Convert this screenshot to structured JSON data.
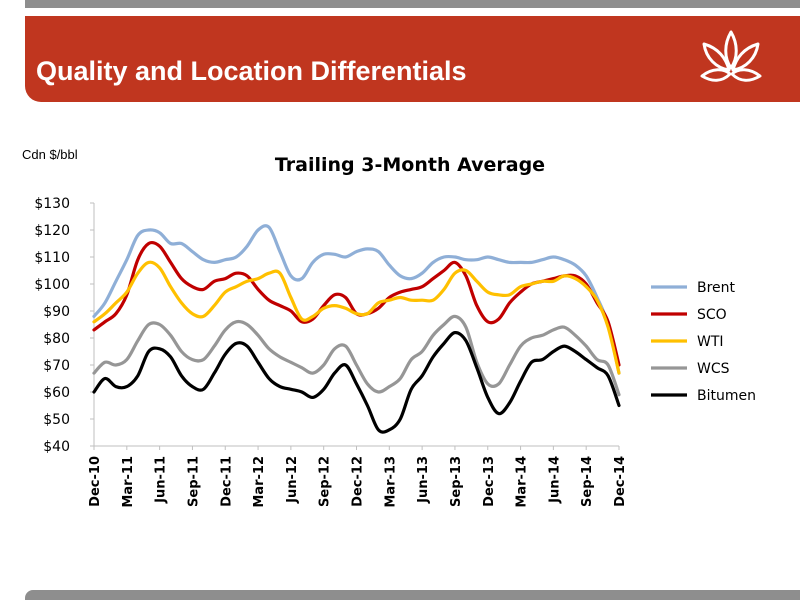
{
  "slide": {
    "title": "Quality and Location Differentials",
    "unit_label": "Cdn $/bbl"
  },
  "logo": {
    "icon": "lotus-flower-icon",
    "color": "#ffffff"
  },
  "colors": {
    "banner": "#c0361f",
    "bars": "#8e8e8e"
  },
  "chart_data": {
    "type": "line",
    "title": "Trailing 3-Month Average",
    "xlabel": "",
    "ylabel": "Cdn $/bbl",
    "ylim": [
      40,
      130
    ],
    "grid": false,
    "legend_position": "right",
    "yticks": [
      "$130",
      "$120",
      "$110",
      "$100",
      "$90",
      "$80",
      "$70",
      "$60",
      "$50",
      "$40"
    ],
    "ytick_values": [
      130,
      120,
      110,
      100,
      90,
      80,
      70,
      60,
      50,
      40
    ],
    "xticks": [
      "Dec-10",
      "Mar-11",
      "Jun-11",
      "Sep-11",
      "Dec-11",
      "Mar-12",
      "Jun-12",
      "Sep-12",
      "Dec-12",
      "Mar-13",
      "Jun-13",
      "Sep-13",
      "Dec-13",
      "Mar-14",
      "Jun-14",
      "Sep-14",
      "Dec-14"
    ],
    "xticks_bold": [
      false,
      true,
      false,
      false,
      false,
      true,
      false,
      false,
      false,
      true,
      false,
      false,
      false,
      true,
      false,
      false,
      true
    ],
    "x": [
      "Dec-10",
      "Jan-11",
      "Feb-11",
      "Mar-11",
      "Apr-11",
      "May-11",
      "Jun-11",
      "Jul-11",
      "Aug-11",
      "Sep-11",
      "Oct-11",
      "Nov-11",
      "Dec-11",
      "Jan-12",
      "Feb-12",
      "Mar-12",
      "Apr-12",
      "May-12",
      "Jun-12",
      "Jul-12",
      "Aug-12",
      "Sep-12",
      "Oct-12",
      "Nov-12",
      "Dec-12",
      "Jan-13",
      "Feb-13",
      "Mar-13",
      "Apr-13",
      "May-13",
      "Jun-13",
      "Jul-13",
      "Aug-13",
      "Sep-13",
      "Oct-13",
      "Nov-13",
      "Dec-13",
      "Jan-14",
      "Feb-14",
      "Mar-14",
      "Apr-14",
      "May-14",
      "Jun-14",
      "Jul-14",
      "Aug-14",
      "Sep-14",
      "Oct-14",
      "Nov-14",
      "Dec-14"
    ],
    "series": [
      {
        "name": "Brent",
        "color": "#8fafd7",
        "values": [
          88,
          93,
          101,
          109,
          118,
          120,
          119,
          115,
          115,
          112,
          109,
          108,
          109,
          110,
          114,
          120,
          121,
          112,
          103,
          102,
          108,
          111,
          111,
          110,
          112,
          113,
          112,
          107,
          103,
          102,
          104,
          108,
          110,
          110,
          109,
          109,
          110,
          109,
          108,
          108,
          108,
          109,
          110,
          109,
          107,
          103,
          95,
          85,
          67
        ]
      },
      {
        "name": "SCO",
        "color": "#c00000",
        "values": [
          83,
          86,
          89,
          96,
          109,
          115,
          114,
          108,
          102,
          99,
          98,
          101,
          102,
          104,
          103,
          98,
          94,
          92,
          90,
          86,
          87,
          92,
          96,
          95,
          89,
          89,
          91,
          95,
          97,
          98,
          99,
          102,
          105,
          108,
          103,
          92,
          86,
          87,
          93,
          97,
          100,
          101,
          102,
          103,
          103,
          100,
          93,
          86,
          70
        ]
      },
      {
        "name": "WTI",
        "color": "#ffc000",
        "values": [
          86,
          89,
          93,
          97,
          104,
          108,
          106,
          99,
          93,
          89,
          88,
          92,
          97,
          99,
          101,
          102,
          104,
          104,
          95,
          87,
          88,
          91,
          92,
          91,
          89,
          89,
          93,
          94,
          95,
          94,
          94,
          94,
          98,
          104,
          105,
          101,
          97,
          96,
          96,
          99,
          100,
          101,
          101,
          103,
          102,
          99,
          94,
          84,
          67
        ]
      },
      {
        "name": "WCS",
        "color": "#969696",
        "values": [
          67,
          71,
          70,
          72,
          79,
          85,
          85,
          81,
          75,
          72,
          72,
          77,
          83,
          86,
          85,
          81,
          76,
          73,
          71,
          69,
          67,
          70,
          76,
          77,
          70,
          63,
          60,
          62,
          65,
          72,
          75,
          81,
          85,
          88,
          84,
          71,
          63,
          63,
          70,
          77,
          80,
          81,
          83,
          84,
          81,
          77,
          72,
          70,
          59
        ]
      },
      {
        "name": "Bitumen",
        "color": "#000000",
        "values": [
          60,
          65,
          62,
          62,
          66,
          75,
          76,
          73,
          66,
          62,
          61,
          67,
          74,
          78,
          77,
          71,
          65,
          62,
          61,
          60,
          58,
          61,
          67,
          70,
          63,
          55,
          46,
          46,
          50,
          61,
          66,
          73,
          78,
          82,
          79,
          69,
          58,
          52,
          56,
          64,
          71,
          72,
          75,
          77,
          75,
          72,
          69,
          66,
          55
        ]
      }
    ]
  }
}
